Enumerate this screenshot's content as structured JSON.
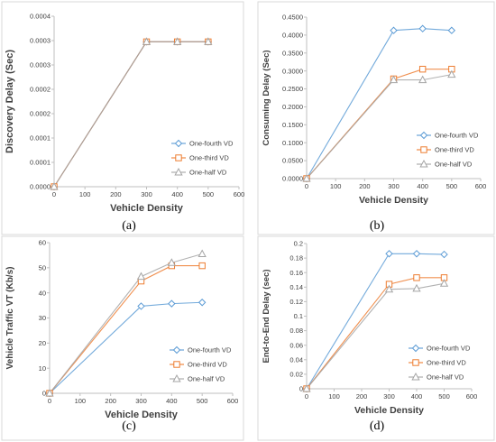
{
  "chart_data": [
    {
      "type": "line",
      "panel_label": "(a)",
      "xlabel": "Vehicle Density",
      "ylabel": "Discovery Delay (Sec)",
      "xlim": [
        0,
        600
      ],
      "ylim": [
        0,
        0.0004
      ],
      "xticks": [
        "0",
        "100",
        "200",
        "300",
        "400",
        "500",
        "600"
      ],
      "yticks": [
        "0.0000",
        "0.0001",
        "0.0001",
        "0.0002",
        "0.0002",
        "0.0003",
        "0.0003",
        "0.0004"
      ],
      "grid": false,
      "legend_position": "bottom-right",
      "x": [
        0,
        300,
        400,
        500
      ],
      "series": [
        {
          "name": "One-fourth VD",
          "color": "#5B9BD5",
          "marker": "diamond",
          "values": [
            0,
            0.00034,
            0.00034,
            0.00034
          ]
        },
        {
          "name": "One-third VD",
          "color": "#ED7D31",
          "marker": "square",
          "values": [
            0,
            0.00034,
            0.00034,
            0.00034
          ]
        },
        {
          "name": "One-half VD",
          "color": "#A5A5A5",
          "marker": "triangle",
          "values": [
            0,
            0.00034,
            0.00034,
            0.00034
          ]
        }
      ]
    },
    {
      "type": "line",
      "panel_label": "(b)",
      "xlabel": "Vehicle Density",
      "ylabel": "Consuming Delay (Sec)",
      "xlim": [
        0,
        600
      ],
      "ylim": [
        0,
        0.45
      ],
      "xticks": [
        "0",
        "100",
        "200",
        "300",
        "400",
        "500",
        "600"
      ],
      "yticks": [
        "0.0000",
        "0.0500",
        "0.1000",
        "0.1500",
        "0.2000",
        "0.2500",
        "0.3000",
        "0.3500",
        "0.4000",
        "0.4500"
      ],
      "grid": false,
      "legend_position": "bottom-right",
      "x": [
        0,
        300,
        400,
        500
      ],
      "series": [
        {
          "name": "One-fourth VD",
          "color": "#5B9BD5",
          "marker": "diamond",
          "values": [
            0,
            0.413,
            0.418,
            0.413
          ]
        },
        {
          "name": "One-third VD",
          "color": "#ED7D31",
          "marker": "square",
          "values": [
            0,
            0.278,
            0.305,
            0.305
          ]
        },
        {
          "name": "One-half VD",
          "color": "#A5A5A5",
          "marker": "triangle",
          "values": [
            0,
            0.275,
            0.275,
            0.29
          ]
        }
      ]
    },
    {
      "type": "line",
      "panel_label": "(c)",
      "xlabel": "Vehicle Density",
      "ylabel": "Vehicle Traffic VT (Kb/s)",
      "xlim": [
        0,
        600
      ],
      "ylim": [
        0,
        60
      ],
      "xticks": [
        "0",
        "100",
        "200",
        "300",
        "400",
        "500",
        "600"
      ],
      "yticks": [
        "0",
        "10",
        "20",
        "30",
        "40",
        "50",
        "60"
      ],
      "grid": false,
      "legend_position": "bottom-right",
      "x": [
        0,
        300,
        400,
        500
      ],
      "series": [
        {
          "name": "One-fourth VD",
          "color": "#5B9BD5",
          "marker": "diamond",
          "values": [
            0,
            34.7,
            35.7,
            36.2
          ]
        },
        {
          "name": "One-third VD",
          "color": "#ED7D31",
          "marker": "square",
          "values": [
            0,
            44.7,
            50.8,
            50.8
          ]
        },
        {
          "name": "One-half VD",
          "color": "#A5A5A5",
          "marker": "triangle",
          "values": [
            0,
            46.5,
            52.0,
            55.5
          ]
        }
      ]
    },
    {
      "type": "line",
      "panel_label": "(d)",
      "xlabel": "Vehicle Density",
      "ylabel": "End-to-End Delay (sec)",
      "xlim": [
        0,
        600
      ],
      "ylim": [
        0,
        0.2
      ],
      "xticks": [
        "0",
        "100",
        "200",
        "300",
        "400",
        "500",
        "600"
      ],
      "yticks": [
        "0",
        "0.02",
        "0.04",
        "0.06",
        "0.08",
        "0.1",
        "0.12",
        "0.14",
        "0.16",
        "0.18",
        "0.2"
      ],
      "grid": false,
      "legend_position": "bottom-right",
      "x": [
        0,
        300,
        400,
        500
      ],
      "series": [
        {
          "name": "One-fourth VD",
          "color": "#5B9BD5",
          "marker": "diamond",
          "values": [
            0,
            0.186,
            0.186,
            0.185
          ]
        },
        {
          "name": "One-third VD",
          "color": "#ED7D31",
          "marker": "square",
          "values": [
            0,
            0.144,
            0.153,
            0.153
          ]
        },
        {
          "name": "One-half VD",
          "color": "#A5A5A5",
          "marker": "triangle",
          "values": [
            0,
            0.137,
            0.138,
            0.145
          ]
        }
      ]
    }
  ]
}
